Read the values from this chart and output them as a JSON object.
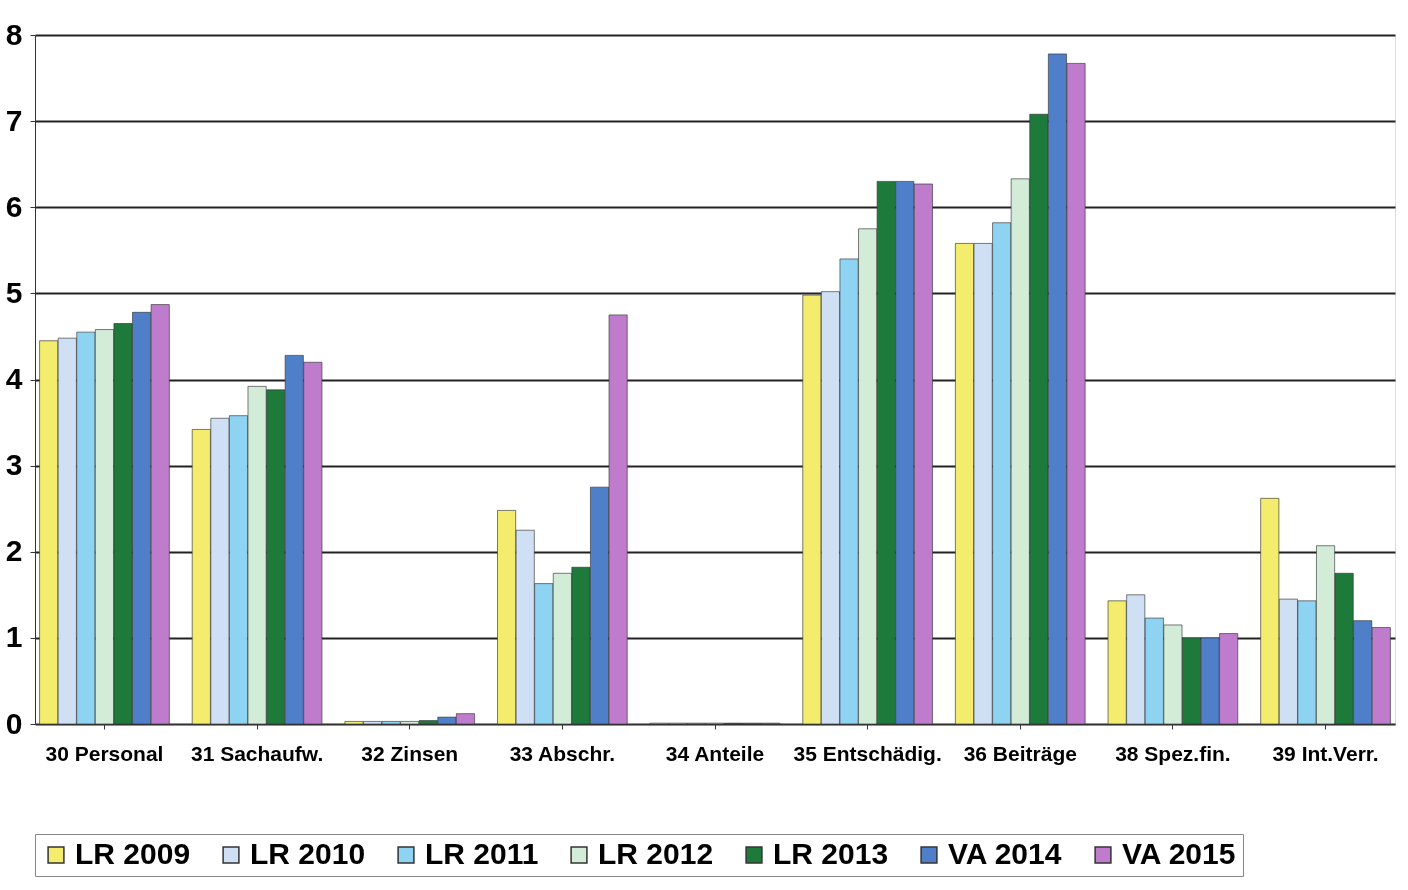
{
  "chart_data": {
    "type": "bar",
    "categories": [
      "30 Personal",
      "31 Sachaufw.",
      "32 Zinsen",
      "33 Abschr.",
      "34 Anteile",
      "35 Entschädig.",
      "36 Beiträge",
      "38 Spez.fin.",
      "39 Int.Verr."
    ],
    "series": [
      {
        "name": "LR 2009",
        "color": "#f3ec6c",
        "values": [
          4.45,
          3.42,
          0.03,
          2.48,
          0.01,
          4.98,
          5.58,
          1.43,
          2.62
        ]
      },
      {
        "name": "LR 2010",
        "color": "#cfe0f5",
        "values": [
          4.48,
          3.55,
          0.03,
          2.25,
          0.01,
          5.02,
          5.58,
          1.5,
          1.45
        ]
      },
      {
        "name": "LR 2011",
        "color": "#8fd3f3",
        "values": [
          4.55,
          3.58,
          0.03,
          1.63,
          0.01,
          5.4,
          5.82,
          1.23,
          1.43
        ]
      },
      {
        "name": "LR 2012",
        "color": "#d3ecd8",
        "values": [
          4.58,
          3.92,
          0.03,
          1.75,
          0.01,
          5.75,
          6.33,
          1.15,
          2.07
        ]
      },
      {
        "name": "LR 2013",
        "color": "#1e7a3a",
        "values": [
          4.65,
          3.88,
          0.04,
          1.82,
          0.01,
          6.3,
          7.08,
          1.0,
          1.75
        ]
      },
      {
        "name": "VA 2014",
        "color": "#4f7fc9",
        "values": [
          4.78,
          4.28,
          0.08,
          2.75,
          0.01,
          6.3,
          7.78,
          1.0,
          1.2
        ]
      },
      {
        "name": "VA 2015",
        "color": "#c07ccc",
        "values": [
          4.87,
          4.2,
          0.12,
          4.75,
          0.01,
          6.27,
          7.67,
          1.05,
          1.12
        ]
      }
    ],
    "ylim": [
      0,
      8
    ],
    "yticks": [
      0,
      1,
      2,
      3,
      4,
      5,
      6,
      7,
      8
    ],
    "grid": "y",
    "legend": "bottom"
  }
}
